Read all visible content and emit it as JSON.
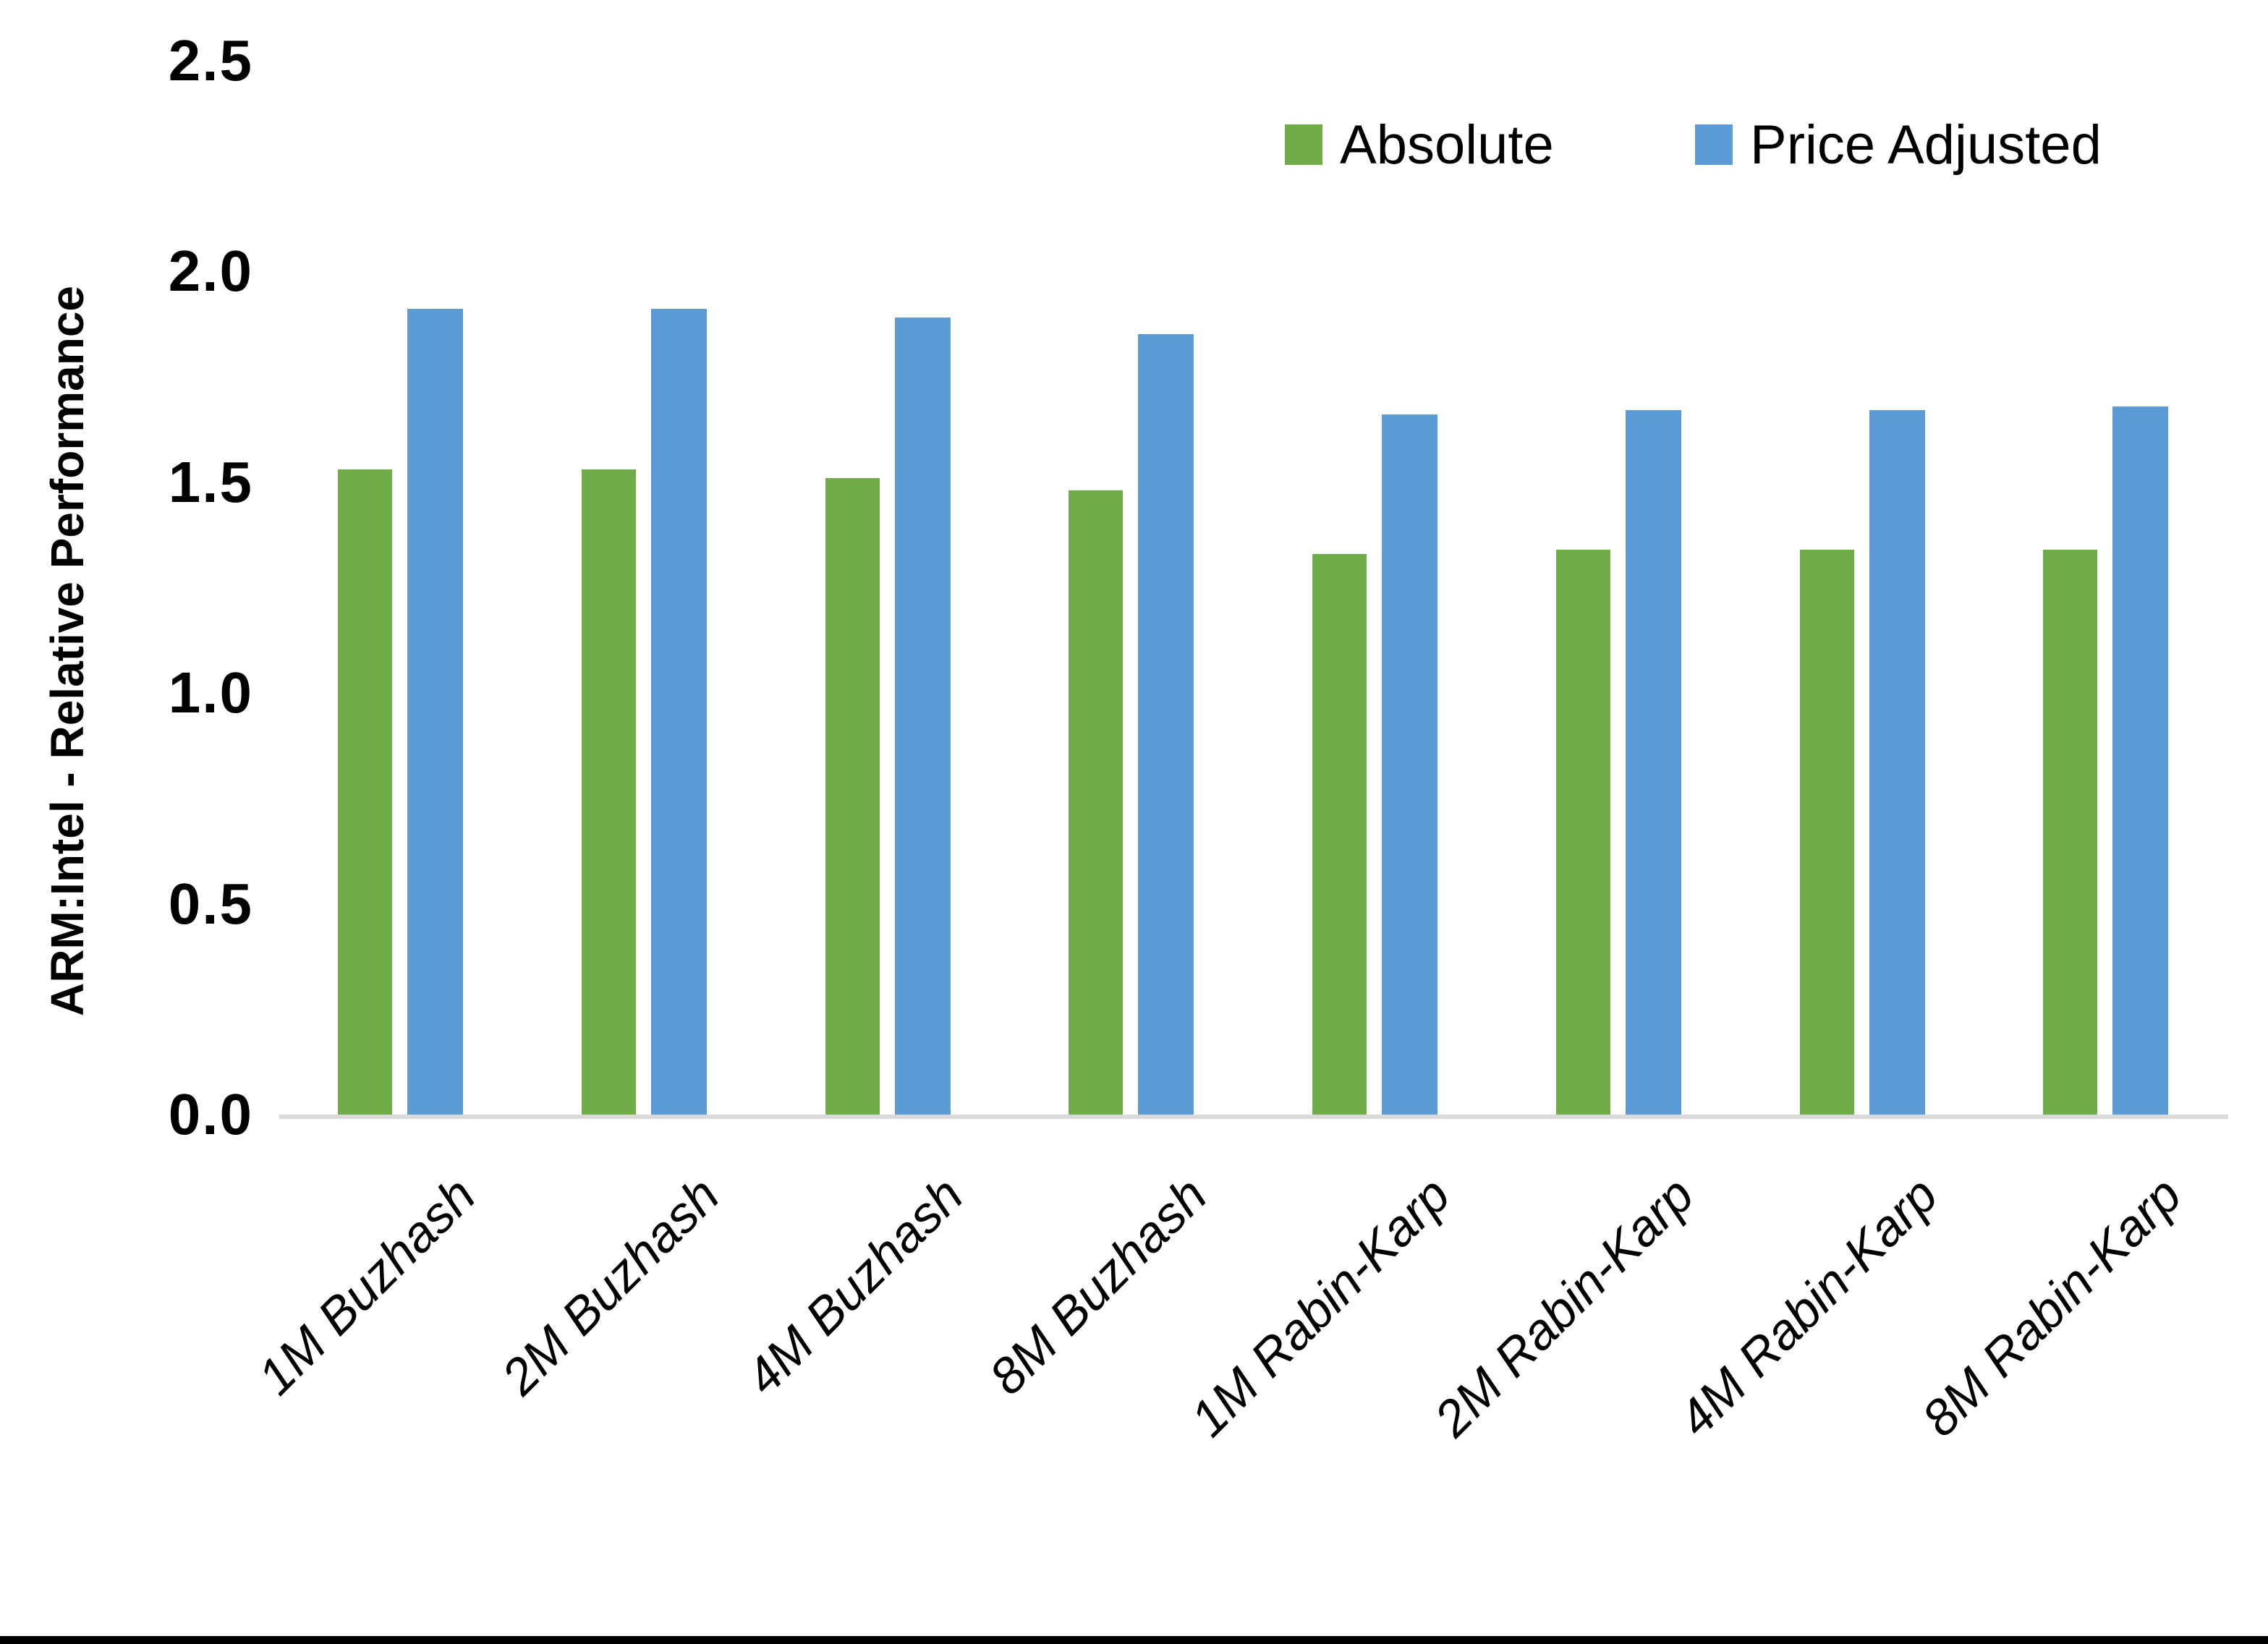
{
  "chart_data": {
    "type": "bar",
    "title": "",
    "xlabel": "",
    "ylabel": "ARM:Intel - Relative Performance",
    "categories": [
      "1M Buzhash",
      "2M Buzhash",
      "4M Buzhash",
      "8M Buzhash",
      "1M Rabin-Karp",
      "2M Rabin-Karp",
      "4M Rabin-Karp",
      "8M Rabin-Karp"
    ],
    "series": [
      {
        "name": "Absolute",
        "color": "#70AD47",
        "values": [
          1.53,
          1.53,
          1.51,
          1.48,
          1.33,
          1.34,
          1.34,
          1.34
        ]
      },
      {
        "name": "Price Adjusted",
        "color": "#5B9BD5",
        "values": [
          1.91,
          1.91,
          1.89,
          1.85,
          1.66,
          1.67,
          1.67,
          1.68
        ]
      }
    ],
    "ylim": [
      0.0,
      2.5
    ],
    "ytick_step": 0.5,
    "ytick_labels": [
      "0.0",
      "0.5",
      "1.0",
      "1.5",
      "2.0",
      "2.5"
    ],
    "grid": false,
    "legend_position": "top-right",
    "axis_line_color": "#D9D9D9",
    "text_color": "#000000"
  }
}
